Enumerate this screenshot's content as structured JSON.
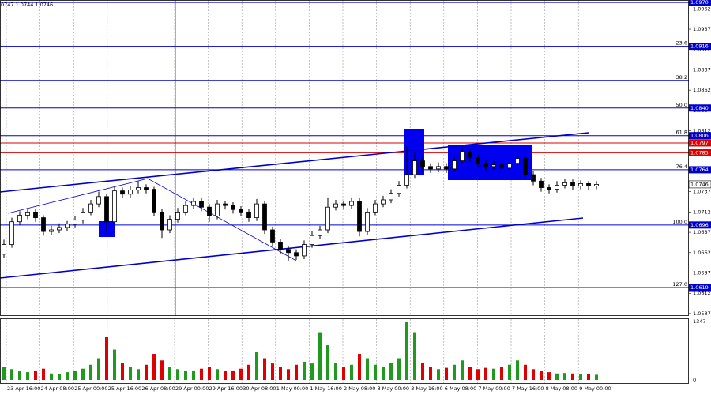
{
  "chart_data": {
    "type": "candlestick",
    "header": "0747 1.0744 1.0746",
    "ylim": [
      1.0584,
      1.0973
    ],
    "yticks": [
      1.0962,
      1.0937,
      1.0912,
      1.0887,
      1.0862,
      1.0837,
      1.0812,
      1.0787,
      1.0762,
      1.0737,
      1.0712,
      1.0687,
      1.0662,
      1.0637,
      1.0612,
      1.0587
    ],
    "categories": [
      "23 Apr 16:00",
      "24 Apr 08:00",
      "25 Apr 00:00",
      "25 Apr 16:00",
      "26 Apr 08:00",
      "29 Apr 00:00",
      "29 Apr 16:00",
      "30 Apr 08:00",
      "1 May 00:00",
      "1 May 16:00",
      "2 May 08:00",
      "3 May 00:00",
      "3 May 16:00",
      "6 May 08:00",
      "7 May 00:00",
      "7 May 16:00",
      "8 May 08:00",
      "9 May 00:00"
    ],
    "grid": true,
    "candle_color": "#000000",
    "levels": [
      {
        "price": {
          "value": 1.097,
          "label": "1.0970"
        },
        "color": "#0000cd"
      },
      {
        "price": 1.0916,
        "fib": "23.6",
        "color": "#0000cd"
      },
      {
        "price_unlabeled": 1.0874,
        "fib": "38.2",
        "color": "#0000cd"
      },
      {
        "price": {
          "value": 1.084,
          "label": "1.0840"
        },
        "fib": "50.0",
        "color": "#0000cd"
      },
      {
        "price": 1.0806,
        "fib": "61.8",
        "color": "#0000cd"
      },
      {
        "price": 1.0797,
        "color": "#dd0000"
      },
      {
        "price": 1.0785,
        "color": "#dd0000"
      },
      {
        "price": 1.0764,
        "fib": "76.4",
        "color": "#0000cd"
      },
      {
        "price": 1.0696,
        "fib": "100.0",
        "color": "#0000cd"
      },
      {
        "price": 1.0619,
        "fib": "127.0",
        "color": "#0000cd"
      }
    ],
    "last_price": 1.0746,
    "candles": [
      [
        1.066,
        1.0678,
        1.0655,
        1.0672
      ],
      [
        1.0672,
        1.0705,
        1.0668,
        1.07
      ],
      [
        1.07,
        1.0713,
        1.0696,
        1.0708
      ],
      [
        1.0708,
        1.0717,
        1.0703,
        1.0712
      ],
      [
        1.0712,
        1.0716,
        1.07,
        1.0705
      ],
      [
        1.0705,
        1.0708,
        1.0683,
        1.0688
      ],
      [
        1.0688,
        1.0695,
        1.0684,
        1.069
      ],
      [
        1.069,
        1.0698,
        1.0686,
        1.0693
      ],
      [
        1.0693,
        1.0701,
        1.0689,
        1.0697
      ],
      [
        1.0697,
        1.0707,
        1.0693,
        1.0702
      ],
      [
        1.0702,
        1.0717,
        1.0698,
        1.0712
      ],
      [
        1.0712,
        1.0727,
        1.0708,
        1.0722
      ],
      [
        1.0722,
        1.0737,
        1.0718,
        1.0731
      ],
      [
        1.0731,
        1.0734,
        1.0688,
        1.07
      ],
      [
        1.07,
        1.0743,
        1.0697,
        1.0738
      ],
      [
        1.0738,
        1.0742,
        1.0729,
        1.0734
      ],
      [
        1.0734,
        1.0744,
        1.073,
        1.0739
      ],
      [
        1.0739,
        1.075,
        1.0735,
        1.0742
      ],
      [
        1.0742,
        1.0746,
        1.0735,
        1.074
      ],
      [
        1.074,
        1.0743,
        1.0707,
        1.0712
      ],
      [
        1.0712,
        1.0716,
        1.068,
        1.069
      ],
      [
        1.069,
        1.0708,
        1.0686,
        1.0703
      ],
      [
        1.0703,
        1.0717,
        1.0699,
        1.0712
      ],
      [
        1.0712,
        1.0725,
        1.0708,
        1.072
      ],
      [
        1.072,
        1.073,
        1.0716,
        1.0725
      ],
      [
        1.0725,
        1.0729,
        1.0713,
        1.0718
      ],
      [
        1.0718,
        1.0722,
        1.07,
        1.0707
      ],
      [
        1.0707,
        1.0727,
        1.0703,
        1.0722
      ],
      [
        1.0722,
        1.0726,
        1.0715,
        1.072
      ],
      [
        1.072,
        1.0724,
        1.071,
        1.0715
      ],
      [
        1.0715,
        1.0719,
        1.0707,
        1.0712
      ],
      [
        1.0712,
        1.0716,
        1.07,
        1.0705
      ],
      [
        1.0705,
        1.0728,
        1.0701,
        1.0722
      ],
      [
        1.0722,
        1.0726,
        1.0685,
        1.069
      ],
      [
        1.069,
        1.0694,
        1.067,
        1.0675
      ],
      [
        1.0675,
        1.0679,
        1.0661,
        1.0666
      ],
      [
        1.0666,
        1.067,
        1.0652,
        1.0662
      ],
      [
        1.0662,
        1.0666,
        1.0653,
        1.0658
      ],
      [
        1.0658,
        1.0677,
        1.0654,
        1.0672
      ],
      [
        1.0672,
        1.0688,
        1.0668,
        1.0683
      ],
      [
        1.0683,
        1.0695,
        1.0679,
        1.069
      ],
      [
        1.069,
        1.073,
        1.0686,
        1.0718
      ],
      [
        1.0718,
        1.0727,
        1.0714,
        1.0722
      ],
      [
        1.0722,
        1.0726,
        1.0715,
        1.072
      ],
      [
        1.072,
        1.073,
        1.0716,
        1.0725
      ],
      [
        1.0725,
        1.0729,
        1.0682,
        1.0688
      ],
      [
        1.0688,
        1.0717,
        1.0684,
        1.0712
      ],
      [
        1.0712,
        1.0727,
        1.0708,
        1.0722
      ],
      [
        1.0722,
        1.0732,
        1.0718,
        1.0727
      ],
      [
        1.0727,
        1.074,
        1.0723,
        1.0735
      ],
      [
        1.0735,
        1.075,
        1.0731,
        1.0745
      ],
      [
        1.0745,
        1.0793,
        1.0741,
        1.0758
      ],
      [
        1.0758,
        1.0785,
        1.0754,
        1.0775
      ],
      [
        1.0775,
        1.0779,
        1.0763,
        1.0768
      ],
      [
        1.0768,
        1.0772,
        1.076,
        1.0765
      ],
      [
        1.0765,
        1.0773,
        1.0761,
        1.0768
      ],
      [
        1.0768,
        1.0772,
        1.076,
        1.0765
      ],
      [
        1.0765,
        1.078,
        1.0761,
        1.0775
      ],
      [
        1.0775,
        1.0791,
        1.0771,
        1.0786
      ],
      [
        1.0786,
        1.079,
        1.0774,
        1.0779
      ],
      [
        1.0779,
        1.0783,
        1.0767,
        1.0772
      ],
      [
        1.0772,
        1.0776,
        1.0763,
        1.0768
      ],
      [
        1.0768,
        1.0775,
        1.0764,
        1.077
      ],
      [
        1.077,
        1.0774,
        1.0761,
        1.0766
      ],
      [
        1.0766,
        1.0777,
        1.0762,
        1.0772
      ],
      [
        1.0772,
        1.0786,
        1.0768,
        1.0778
      ],
      [
        1.0778,
        1.0782,
        1.0753,
        1.0758
      ],
      [
        1.0758,
        1.0762,
        1.0745,
        1.075
      ],
      [
        1.075,
        1.0754,
        1.0737,
        1.0742
      ],
      [
        1.0742,
        1.0746,
        1.0735,
        1.074
      ],
      [
        1.074,
        1.075,
        1.0736,
        1.0745
      ],
      [
        1.0745,
        1.0753,
        1.0741,
        1.0748
      ],
      [
        1.0748,
        1.0752,
        1.0739,
        1.0744
      ],
      [
        1.0744,
        1.0751,
        1.074,
        1.0747
      ],
      [
        1.0747,
        1.075,
        1.0739,
        1.0744
      ],
      [
        1.0744,
        1.075,
        1.074,
        1.0746
      ]
    ],
    "volumes": [
      300,
      250,
      200,
      180,
      220,
      260,
      150,
      130,
      180,
      200,
      260,
      350,
      500,
      1000,
      700,
      400,
      300,
      250,
      350,
      600,
      450,
      300,
      250,
      200,
      220,
      260,
      300,
      250,
      200,
      220,
      260,
      350,
      650,
      500,
      380,
      300,
      250,
      350,
      420,
      380,
      1100,
      800,
      400,
      300,
      350,
      600,
      500,
      350,
      300,
      400,
      500,
      1347,
      1100,
      400,
      300,
      250,
      280,
      350,
      450,
      300,
      250,
      280,
      260,
      300,
      350,
      450,
      350,
      250,
      200,
      180,
      150,
      160,
      150,
      130,
      140,
      120
    ],
    "vlim": [
      0,
      1347
    ],
    "vticks": [
      1347,
      0
    ],
    "volume_up_color": "#1f9a1f",
    "volume_down_color": "#dd0000"
  }
}
